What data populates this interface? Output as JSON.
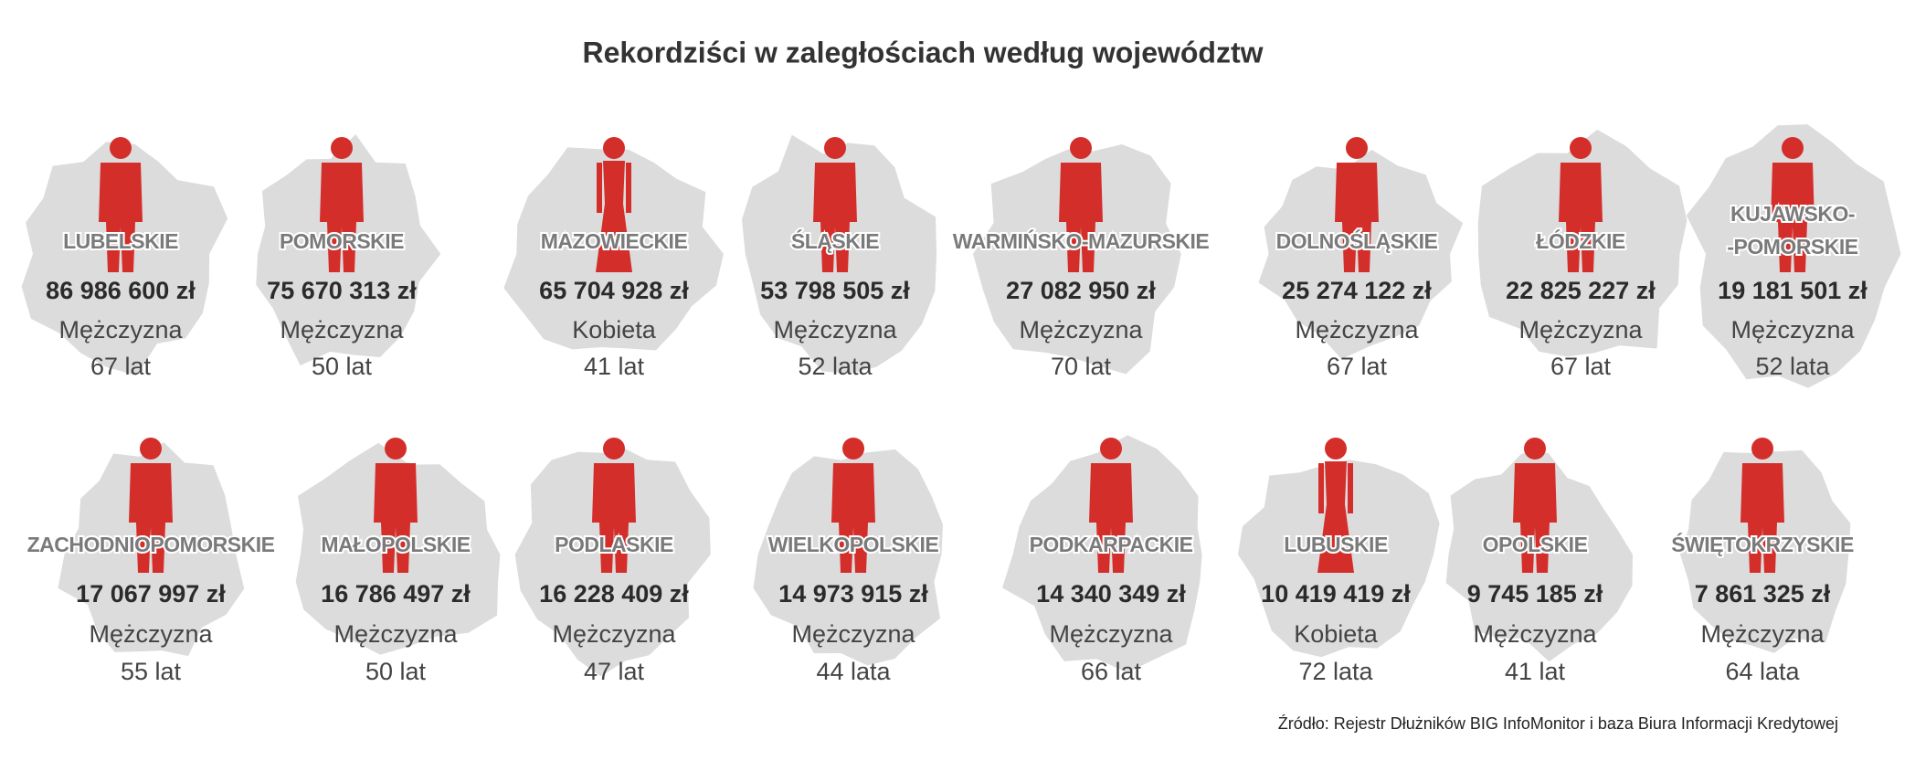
{
  "title": "Rekordziści w zaległościach według województw",
  "items": [
    {
      "region_lines": [
        "LUBELSKIE"
      ],
      "amount": "86 986 600 zł",
      "gender": "Mężczyzna",
      "age": "67 lat"
    },
    {
      "region_lines": [
        "POMORSKIE"
      ],
      "amount": "75 670 313 zł",
      "gender": "Mężczyzna",
      "age": "50 lat"
    },
    {
      "region_lines": [
        "MAZOWIECKIE"
      ],
      "amount": "65 704 928 zł",
      "gender": "Kobieta",
      "age": "41 lat"
    },
    {
      "region_lines": [
        "ŚLĄSKIE"
      ],
      "amount": "53 798 505 zł",
      "gender": "Mężczyzna",
      "age": "52 lata"
    },
    {
      "region_lines": [
        "WARMIŃSKO-MAZURSKIE"
      ],
      "amount": "27 082 950 zł",
      "gender": "Mężczyzna",
      "age": "70 lat"
    },
    {
      "region_lines": [
        "DOLNOŚLĄSKIE"
      ],
      "amount": "25 274 122 zł",
      "gender": "Mężczyzna",
      "age": "67 lat"
    },
    {
      "region_lines": [
        "ŁÓDZKIE"
      ],
      "amount": "22 825 227 zł",
      "gender": "Mężczyzna",
      "age": "67 lat"
    },
    {
      "region_lines": [
        "KUJAWSKO-",
        "-POMORSKIE"
      ],
      "amount": "19 181 501 zł",
      "gender": "Mężczyzna",
      "age": "52 lata"
    },
    {
      "region_lines": [
        "ZACHODNIOPOMORSKIE"
      ],
      "amount": "17 067 997 zł",
      "gender": "Mężczyzna",
      "age": "55 lat"
    },
    {
      "region_lines": [
        "MAŁOPOLSKIE"
      ],
      "amount": "16 786 497 zł",
      "gender": "Mężczyzna",
      "age": "50 lat"
    },
    {
      "region_lines": [
        "PODLASKIE"
      ],
      "amount": "16 228 409 zł",
      "gender": "Mężczyzna",
      "age": "47 lat"
    },
    {
      "region_lines": [
        "WIELKOPOLSKIE"
      ],
      "amount": "14 973 915 zł",
      "gender": "Mężczyzna",
      "age": "44 lata"
    },
    {
      "region_lines": [
        "PODKARPACKIE"
      ],
      "amount": "14 340 349 zł",
      "gender": "Mężczyzna",
      "age": "66 lat"
    },
    {
      "region_lines": [
        "LUBUSKIE"
      ],
      "amount": "10 419 419 zł",
      "gender": "Kobieta",
      "age": "72 lata"
    },
    {
      "region_lines": [
        "OPOLSKIE"
      ],
      "amount": "9 745 185 zł",
      "gender": "Mężczyzna",
      "age": "41 lat"
    },
    {
      "region_lines": [
        "ŚWIĘTOKRZYSKIE"
      ],
      "amount": "7 861 325 zł",
      "gender": "Mężczyzna",
      "age": "64 lata"
    }
  ],
  "source": "Źródło: Rejestr Dłużników BIG InfoMonitor i baza Biura Informacji Kredytowej"
}
